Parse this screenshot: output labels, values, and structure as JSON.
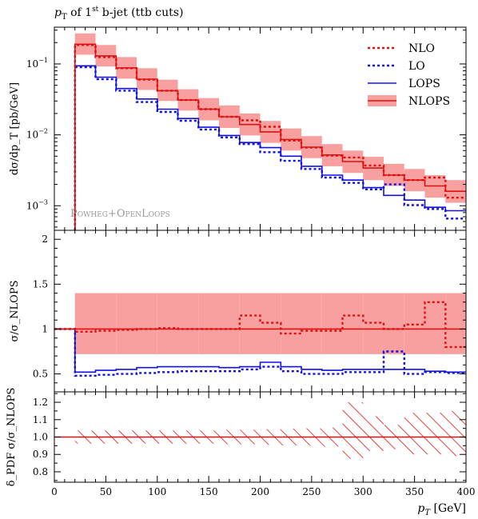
{
  "chart_data": {
    "title": "p",
    "title_sub": "T",
    "title_mid": " of 1",
    "title_sup": "st",
    "title_end": " b-jet (ttb cuts)",
    "watermark": "Powheg+OpenLoops",
    "xlabel_main": "p",
    "xlabel_sub": "T",
    "xlabel_unit": " [GeV]",
    "x_ticks": [
      "0",
      "50",
      "100",
      "150",
      "200",
      "250",
      "300",
      "350",
      "400"
    ],
    "xlim": [
      0,
      400
    ],
    "legend": {
      "position": "top-right",
      "items": [
        {
          "name": "NLO",
          "style": "dotted",
          "color": "#e01010"
        },
        {
          "name": "LO",
          "style": "dotted",
          "color": "#1010e0"
        },
        {
          "name": "LOPS",
          "style": "solid",
          "color": "#1010e0"
        },
        {
          "name": "NLOPS",
          "style": "band",
          "color": "#e01010",
          "band_color": "#f8a0a0"
        }
      ]
    },
    "bins": [
      20,
      40,
      60,
      80,
      100,
      120,
      140,
      160,
      180,
      200,
      220,
      240,
      260,
      280,
      300,
      320,
      340,
      360,
      380,
      400
    ],
    "panels": [
      {
        "type": "line",
        "name": "main",
        "ylabel": "dσ/dp_T [pb/GeV]",
        "log": true,
        "ylim": [
          0.00045,
          0.33
        ],
        "y_ticks": [
          {
            "v": 0.1,
            "base": "10",
            "exp": "−1"
          },
          {
            "v": 0.01,
            "base": "10",
            "exp": "−2"
          },
          {
            "v": 0.001,
            "base": "10",
            "exp": "−3"
          }
        ],
        "series": [
          {
            "name": "NLOPS",
            "values": [
              0.19,
              0.13,
              0.088,
              0.061,
              0.042,
              0.031,
              0.023,
              0.018,
              0.014,
              0.011,
              0.0086,
              0.0067,
              0.0052,
              0.0042,
              0.0034,
              0.0027,
              0.0023,
              0.0019,
              0.0016
            ],
            "band_lo": [
              0.135,
              0.092,
              0.062,
              0.043,
              0.03,
              0.022,
              0.016,
              0.0125,
              0.0098,
              0.0077,
              0.006,
              0.0047,
              0.0036,
              0.0029,
              0.0023,
              0.0019,
              0.0016,
              0.0013,
              0.0011
            ],
            "band_hi": [
              0.27,
              0.185,
              0.125,
              0.087,
              0.06,
              0.044,
              0.033,
              0.026,
              0.02,
              0.0157,
              0.0123,
              0.0096,
              0.0074,
              0.006,
              0.0049,
              0.0039,
              0.0033,
              0.0027,
              0.0023
            ]
          },
          {
            "name": "NLO",
            "values": [
              0.185,
              0.125,
              0.087,
              0.06,
              0.042,
              0.031,
              0.023,
              0.018,
              0.016,
              0.013,
              0.0083,
              0.0066,
              0.0051,
              0.0048,
              0.0037,
              0.0027,
              0.0023,
              0.0025,
              0.0013
            ]
          },
          {
            "name": "LOPS",
            "values": [
              0.094,
              0.065,
              0.045,
              0.032,
              0.023,
              0.017,
              0.0128,
              0.0098,
              0.0078,
              0.0066,
              0.005,
              0.0036,
              0.0027,
              0.0023,
              0.0018,
              0.0014,
              0.0012,
              0.00095,
              0.00085
            ]
          },
          {
            "name": "LO",
            "values": [
              0.09,
              0.061,
              0.042,
              0.029,
              0.021,
              0.0158,
              0.0119,
              0.0092,
              0.0074,
              0.0057,
              0.0043,
              0.0033,
              0.0025,
              0.0021,
              0.0017,
              0.002,
              0.00102,
              0.0009,
              0.00066
            ]
          }
        ]
      },
      {
        "type": "line",
        "name": "ratio",
        "ylabel": "σ/σ_NLOPS",
        "log": false,
        "ylim": [
          0.3,
          2.1
        ],
        "y_ticks": [
          {
            "v": 0.5,
            "label": "0.5"
          },
          {
            "v": 1,
            "label": "1"
          },
          {
            "v": 1.5,
            "label": "1.5"
          },
          {
            "v": 2,
            "label": "2"
          }
        ],
        "series": [
          {
            "name": "NLOPS",
            "values": [
              1,
              1,
              1,
              1,
              1,
              1,
              1,
              1,
              1,
              1,
              1,
              1,
              1,
              1,
              1,
              1,
              1,
              1,
              1
            ],
            "band_lo": [
              0.72,
              0.72,
              0.72,
              0.72,
              0.72,
              0.72,
              0.72,
              0.72,
              0.72,
              0.72,
              0.72,
              0.72,
              0.72,
              0.72,
              0.72,
              0.72,
              0.72,
              0.72,
              0.72
            ],
            "band_hi": [
              1.4,
              1.4,
              1.4,
              1.4,
              1.4,
              1.4,
              1.4,
              1.4,
              1.4,
              1.4,
              1.4,
              1.4,
              1.4,
              1.4,
              1.4,
              1.4,
              1.4,
              1.4,
              1.4
            ]
          },
          {
            "name": "NLO",
            "values": [
              0.97,
              0.98,
              0.99,
              1.0,
              1.01,
              1.0,
              1.0,
              1.0,
              1.15,
              1.07,
              0.95,
              0.98,
              0.98,
              1.15,
              1.07,
              1.0,
              1.05,
              1.3,
              0.8
            ]
          },
          {
            "name": "LOPS",
            "values": [
              0.52,
              0.54,
              0.55,
              0.57,
              0.58,
              0.58,
              0.58,
              0.57,
              0.58,
              0.63,
              0.58,
              0.55,
              0.54,
              0.55,
              0.55,
              0.55,
              0.55,
              0.53,
              0.52
            ]
          },
          {
            "name": "LO",
            "values": [
              0.48,
              0.49,
              0.5,
              0.51,
              0.52,
              0.53,
              0.53,
              0.53,
              0.55,
              0.58,
              0.53,
              0.5,
              0.5,
              0.52,
              0.52,
              0.75,
              0.5,
              0.52,
              0.51
            ]
          }
        ],
        "pre_edge": {
          "x": 0,
          "value": 1.0
        }
      },
      {
        "type": "area",
        "name": "pdf",
        "ylabel": "δ_PDF σ/σ_NLOPS",
        "log": false,
        "ylim": [
          0.74,
          1.26
        ],
        "y_ticks": [
          {
            "v": 0.8,
            "label": "0.8"
          },
          {
            "v": 0.9,
            "label": "0.9"
          },
          {
            "v": 1.0,
            "label": "1.0"
          },
          {
            "v": 1.1,
            "label": "1.1"
          },
          {
            "v": 1.2,
            "label": "1.2"
          }
        ],
        "series": [
          {
            "name": "PDF",
            "values": [
              1,
              1,
              1,
              1,
              1,
              1,
              1,
              1,
              1,
              1,
              1,
              1,
              1,
              1,
              1,
              1,
              1,
              1,
              1
            ],
            "band_lo": [
              0.962,
              0.962,
              0.962,
              0.962,
              0.962,
              0.962,
              0.962,
              0.958,
              0.958,
              0.955,
              0.952,
              0.95,
              0.945,
              0.875,
              0.92,
              0.93,
              0.9,
              0.9,
              0.89
            ],
            "band_hi": [
              1.038,
              1.038,
              1.038,
              1.038,
              1.038,
              1.038,
              1.038,
              1.042,
              1.042,
              1.045,
              1.048,
              1.05,
              1.055,
              1.2,
              1.12,
              1.07,
              1.14,
              1.14,
              1.15
            ]
          }
        ]
      }
    ]
  }
}
